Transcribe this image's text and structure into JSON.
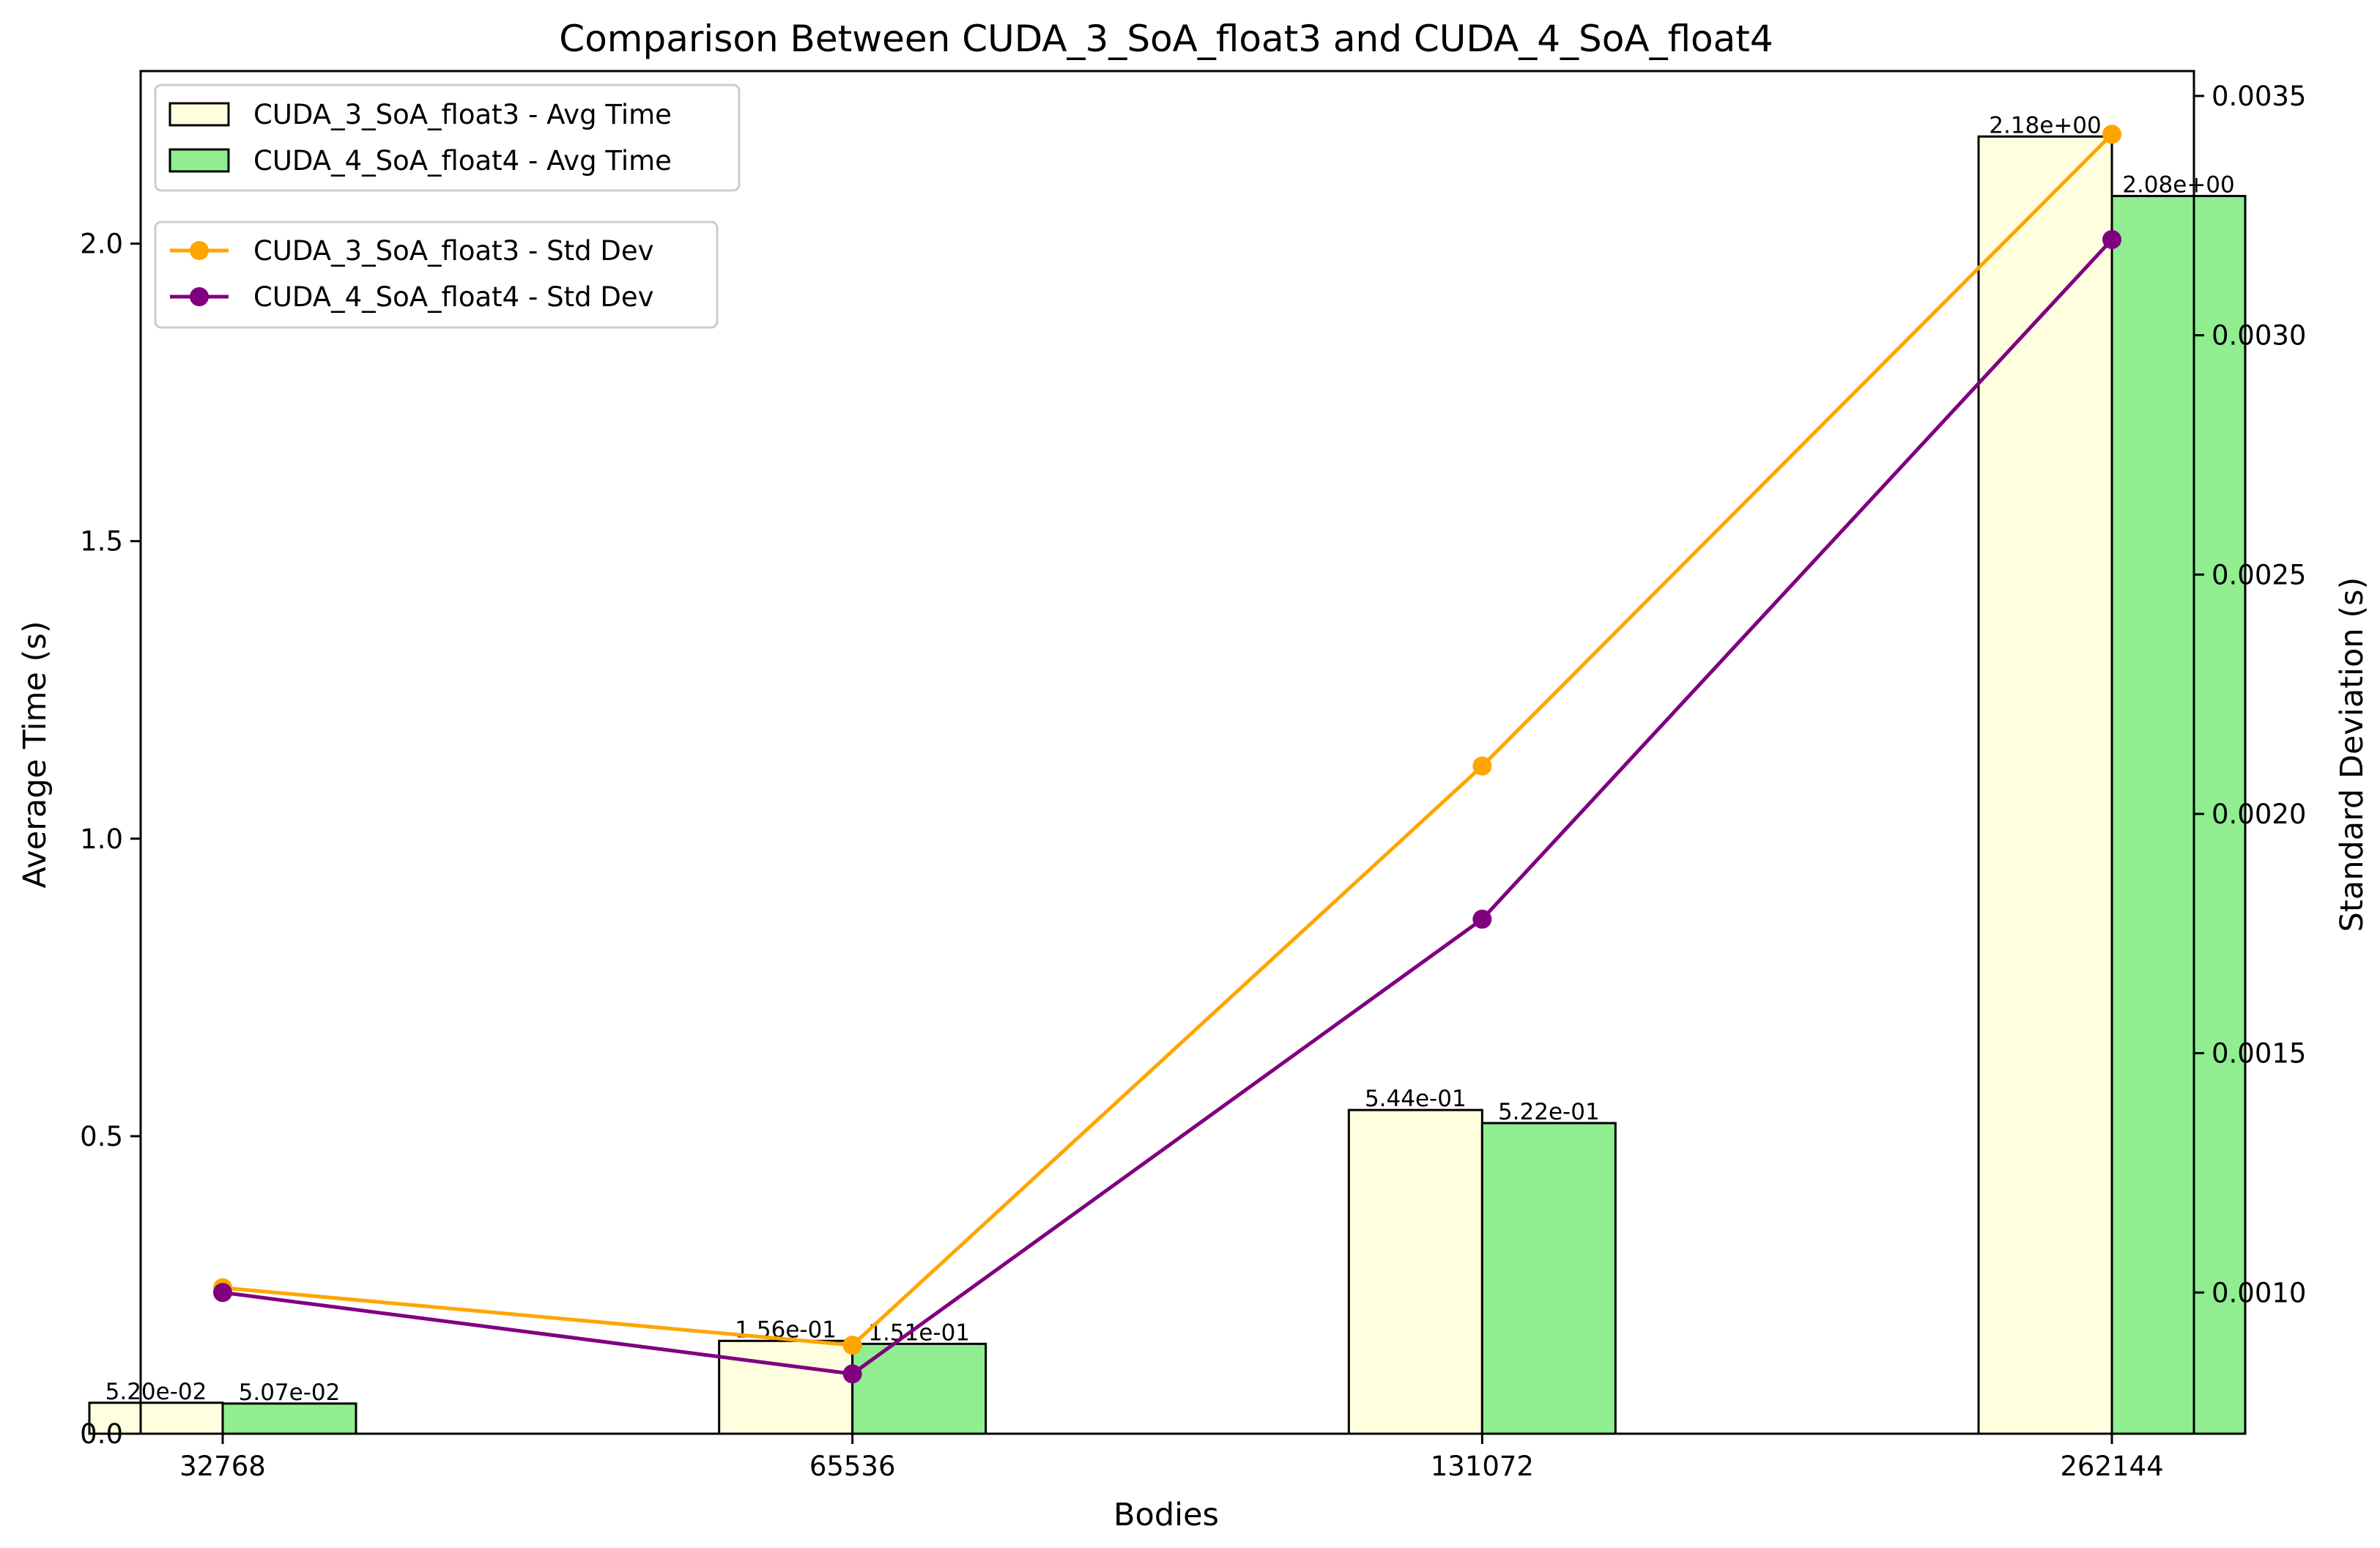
{
  "chart_data": {
    "type": "bar",
    "title": "Comparison Between CUDA_3_SoA_float3 and CUDA_4_SoA_float4",
    "xlabel": "Bodies",
    "ylabel": "Average Time (s)",
    "y2label": "Standard Deviation (s)",
    "categories": [
      "32768",
      "65536",
      "131072",
      "262144"
    ],
    "ylim": [
      0,
      2.29
    ],
    "yticks": [
      "0.0",
      "0.5",
      "1.0",
      "1.5",
      "2.0"
    ],
    "y2lim": [
      0.000705,
      0.003552
    ],
    "y2ticks": [
      "0.0010",
      "0.0015",
      "0.0020",
      "0.0025",
      "0.0030",
      "0.0035"
    ],
    "grid": false,
    "bar_series": [
      {
        "name": "CUDA_3_SoA_float3 - Avg Time",
        "values": [
          0.052,
          0.156,
          0.544,
          2.18
        ],
        "labels": [
          "5.20e-02",
          "1.56e-01",
          "5.44e-01",
          "2.18e+00"
        ],
        "color": "#FFFFE0"
      },
      {
        "name": "CUDA_4_SoA_float4 - Avg Time",
        "values": [
          0.0507,
          0.151,
          0.522,
          2.08
        ],
        "labels": [
          "5.07e-02",
          "1.51e-01",
          "5.22e-01",
          "2.08e+00"
        ],
        "color": "#90EE90"
      }
    ],
    "line_series": [
      {
        "name": "CUDA_3_SoA_float3 - Std Dev",
        "values": [
          0.00101,
          0.00089,
          0.0021,
          0.00342
        ],
        "color": "#FFA500"
      },
      {
        "name": "CUDA_4_SoA_float4 - Std Dev",
        "values": [
          0.001,
          0.00083,
          0.00178,
          0.0032
        ],
        "color": "#800080"
      }
    ],
    "legend_placement": "top-left"
  }
}
